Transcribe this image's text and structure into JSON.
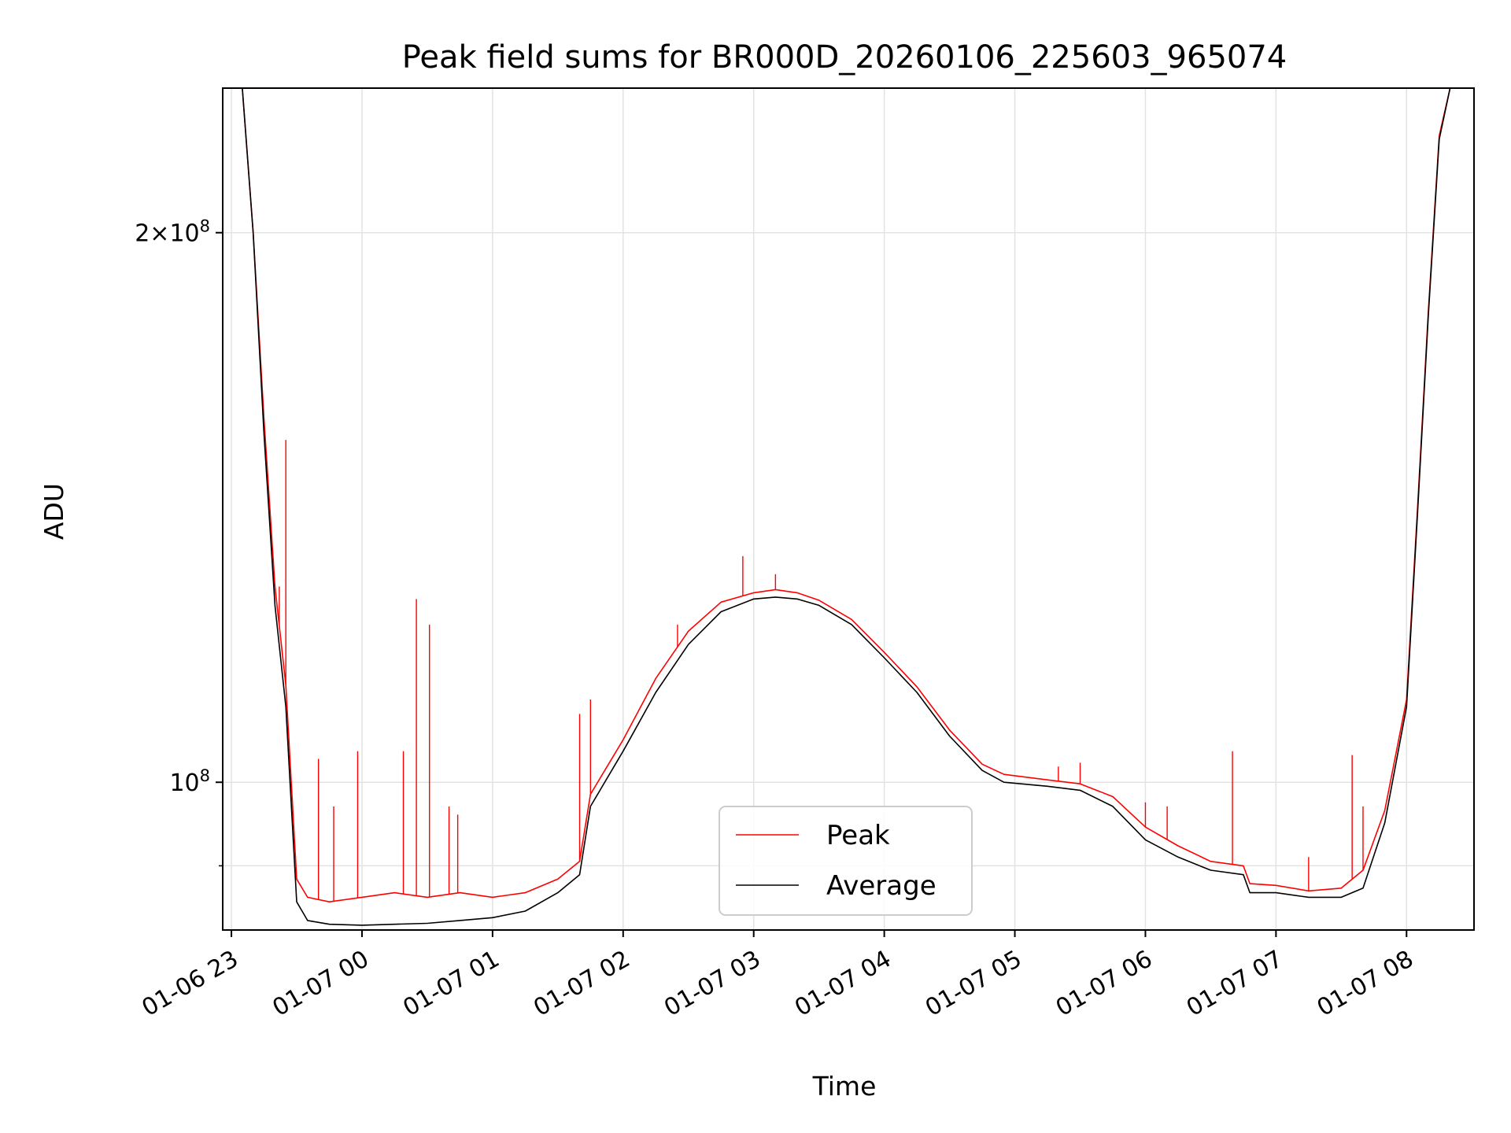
{
  "chart_data": {
    "type": "line",
    "title": "Peak field sums for BR000D_20260106_225603_965074",
    "xlabel": "Time",
    "ylabel": "ADU",
    "x_axis_type": "datetime",
    "y_scale": "log",
    "xlim": [
      "2026-01-06T22:56:00",
      "2026-01-07T08:31:00"
    ],
    "ylim": [
      83000000,
      240000000
    ],
    "x_ticks": [
      {
        "value": "2026-01-06T23:00",
        "label": "01-06 23"
      },
      {
        "value": "2026-01-07T00:00",
        "label": "01-07 00"
      },
      {
        "value": "2026-01-07T01:00",
        "label": "01-07 01"
      },
      {
        "value": "2026-01-07T02:00",
        "label": "01-07 02"
      },
      {
        "value": "2026-01-07T03:00",
        "label": "01-07 03"
      },
      {
        "value": "2026-01-07T04:00",
        "label": "01-07 04"
      },
      {
        "value": "2026-01-07T05:00",
        "label": "01-07 05"
      },
      {
        "value": "2026-01-07T06:00",
        "label": "01-07 06"
      },
      {
        "value": "2026-01-07T07:00",
        "label": "01-07 07"
      },
      {
        "value": "2026-01-07T08:00",
        "label": "01-07 08"
      }
    ],
    "y_major_ticks": [
      {
        "value": 100000000,
        "base": "10",
        "exp": "8",
        "mult": ""
      },
      {
        "value": 200000000,
        "base": "10",
        "exp": "8",
        "mult": "2"
      }
    ],
    "y_minor_tick_values": [
      90000000
    ],
    "grid": true,
    "legend": {
      "position": "lower-center",
      "entries": [
        "Peak",
        "Average"
      ]
    },
    "series": [
      {
        "name": "Average",
        "color": "#000000",
        "x": [
          "2026-01-06T23:05",
          "2026-01-06T23:10",
          "2026-01-06T23:15",
          "2026-01-06T23:20",
          "2026-01-06T23:25",
          "2026-01-06T23:30",
          "2026-01-06T23:35",
          "2026-01-06T23:45",
          "2026-01-07T00:00",
          "2026-01-07T00:15",
          "2026-01-07T00:30",
          "2026-01-07T00:45",
          "2026-01-07T01:00",
          "2026-01-07T01:15",
          "2026-01-07T01:30",
          "2026-01-07T01:40",
          "2026-01-07T01:45",
          "2026-01-07T02:00",
          "2026-01-07T02:15",
          "2026-01-07T02:30",
          "2026-01-07T02:45",
          "2026-01-07T03:00",
          "2026-01-07T03:10",
          "2026-01-07T03:20",
          "2026-01-07T03:30",
          "2026-01-07T03:45",
          "2026-01-07T04:00",
          "2026-01-07T04:15",
          "2026-01-07T04:30",
          "2026-01-07T04:45",
          "2026-01-07T04:55",
          "2026-01-07T05:15",
          "2026-01-07T05:30",
          "2026-01-07T05:45",
          "2026-01-07T06:00",
          "2026-01-07T06:15",
          "2026-01-07T06:30",
          "2026-01-07T06:45",
          "2026-01-07T06:48",
          "2026-01-07T07:00",
          "2026-01-07T07:15",
          "2026-01-07T07:30",
          "2026-01-07T07:40",
          "2026-01-07T07:50",
          "2026-01-07T08:00",
          "2026-01-07T08:05",
          "2026-01-07T08:10",
          "2026-01-07T08:15",
          "2026-01-07T08:20"
        ],
        "y": [
          240000000,
          200000000,
          155000000,
          125000000,
          110000000,
          86000000,
          84000000,
          83600000,
          83500000,
          83600000,
          83700000,
          84000000,
          84300000,
          85000000,
          87000000,
          89000000,
          97000000,
          104000000,
          112000000,
          119000000,
          124000000,
          126000000,
          126300000,
          126000000,
          125000000,
          122000000,
          117000000,
          112000000,
          106000000,
          101500000,
          100000000,
          99500000,
          99000000,
          97000000,
          93000000,
          91000000,
          89500000,
          89000000,
          87000000,
          87000000,
          86500000,
          86500000,
          87500000,
          95000000,
          110000000,
          140000000,
          180000000,
          225000000,
          240000000
        ]
      },
      {
        "name": "Peak",
        "color": "#ff0000",
        "x": [
          "2026-01-06T23:05",
          "2026-01-06T23:10",
          "2026-01-06T23:15",
          "2026-01-06T23:20",
          "2026-01-06T23:25",
          "2026-01-06T23:30",
          "2026-01-06T23:35",
          "2026-01-06T23:45",
          "2026-01-07T00:00",
          "2026-01-07T00:15",
          "2026-01-07T00:30",
          "2026-01-07T00:45",
          "2026-01-07T01:00",
          "2026-01-07T01:15",
          "2026-01-07T01:30",
          "2026-01-07T01:40",
          "2026-01-07T01:45",
          "2026-01-07T02:00",
          "2026-01-07T02:15",
          "2026-01-07T02:30",
          "2026-01-07T02:45",
          "2026-01-07T03:00",
          "2026-01-07T03:10",
          "2026-01-07T03:20",
          "2026-01-07T03:30",
          "2026-01-07T03:45",
          "2026-01-07T04:00",
          "2026-01-07T04:15",
          "2026-01-07T04:30",
          "2026-01-07T04:45",
          "2026-01-07T04:55",
          "2026-01-07T05:15",
          "2026-01-07T05:30",
          "2026-01-07T05:45",
          "2026-01-07T06:00",
          "2026-01-07T06:15",
          "2026-01-07T06:30",
          "2026-01-07T06:45",
          "2026-01-07T06:48",
          "2026-01-07T07:00",
          "2026-01-07T07:15",
          "2026-01-07T07:30",
          "2026-01-07T07:40",
          "2026-01-07T07:50",
          "2026-01-07T08:00",
          "2026-01-07T08:05",
          "2026-01-07T08:10",
          "2026-01-07T08:15",
          "2026-01-07T08:20"
        ],
        "y": [
          240000000,
          200000000,
          158000000,
          128000000,
          113000000,
          88500000,
          86500000,
          86000000,
          86500000,
          87000000,
          86500000,
          87000000,
          86500000,
          87000000,
          88500000,
          90500000,
          98500000,
          105500000,
          114000000,
          121000000,
          125500000,
          127000000,
          127500000,
          127000000,
          125800000,
          122800000,
          117800000,
          112800000,
          106800000,
          102300000,
          101000000,
          100300000,
          99800000,
          98200000,
          94500000,
          92300000,
          90500000,
          90000000,
          88000000,
          87800000,
          87200000,
          87500000,
          89500000,
          96500000,
          111000000,
          141000000,
          181000000,
          226000000,
          240000000
        ]
      }
    ],
    "peak_spikes": [
      {
        "x": "2026-01-06T23:25",
        "y": 154000000
      },
      {
        "x": "2026-01-06T23:22",
        "y": 128000000
      },
      {
        "x": "2026-01-06T23:40",
        "y": 103000000
      },
      {
        "x": "2026-01-06T23:47",
        "y": 97000000
      },
      {
        "x": "2026-01-06T23:58",
        "y": 104000000
      },
      {
        "x": "2026-01-07T00:19",
        "y": 104000000
      },
      {
        "x": "2026-01-07T00:25",
        "y": 126000000
      },
      {
        "x": "2026-01-07T00:31",
        "y": 122000000
      },
      {
        "x": "2026-01-07T00:40",
        "y": 97000000
      },
      {
        "x": "2026-01-07T00:44",
        "y": 96000000
      },
      {
        "x": "2026-01-07T01:40",
        "y": 109000000
      },
      {
        "x": "2026-01-07T01:45",
        "y": 111000000
      },
      {
        "x": "2026-01-07T02:25",
        "y": 122000000
      },
      {
        "x": "2026-01-07T02:55",
        "y": 133000000
      },
      {
        "x": "2026-01-07T03:10",
        "y": 130000000
      },
      {
        "x": "2026-01-07T05:20",
        "y": 102000000
      },
      {
        "x": "2026-01-07T05:30",
        "y": 102500000
      },
      {
        "x": "2026-01-07T06:00",
        "y": 97500000
      },
      {
        "x": "2026-01-07T06:10",
        "y": 97000000
      },
      {
        "x": "2026-01-07T06:40",
        "y": 104000000
      },
      {
        "x": "2026-01-07T07:15",
        "y": 91000000
      },
      {
        "x": "2026-01-07T07:35",
        "y": 103500000
      },
      {
        "x": "2026-01-07T07:40",
        "y": 97000000
      }
    ]
  }
}
